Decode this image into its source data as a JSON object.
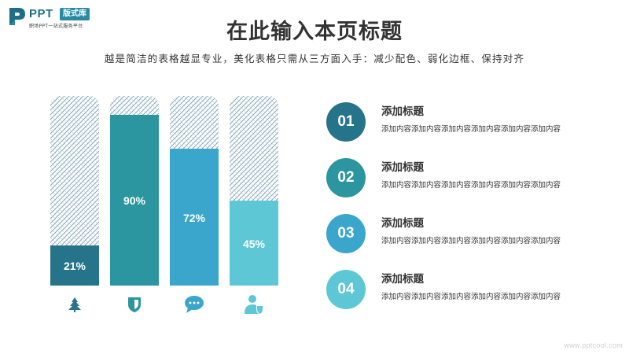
{
  "logo": {
    "brand": "PPT",
    "badge": "版式库",
    "tagline": "职场PPT一站式服务平台"
  },
  "title": "在此输入本页标题",
  "subtitle": "越是简洁的表格越显专业，美化表格只需从三方面入手：减少配色、弱化边框、保持对齐",
  "chart_data": {
    "type": "bar",
    "categories": [
      "tree-icon",
      "shield-icon",
      "chat-bubble-icon",
      "user-shield-icon"
    ],
    "values": [
      21,
      90,
      72,
      45
    ],
    "value_labels": [
      "21%",
      "90%",
      "72%",
      "45%"
    ],
    "ylim": [
      0,
      100
    ],
    "colors": [
      "#26748a",
      "#2b96a0",
      "#3aa6cc",
      "#5ec7d6"
    ],
    "grid": false,
    "legend": "none"
  },
  "items": [
    {
      "number": "01",
      "title": "添加标题",
      "desc": "添加内容添加内容添加内容添加内容添加内容添加内容",
      "color": "#26748a"
    },
    {
      "number": "02",
      "title": "添加标题",
      "desc": "添加内容添加内容添加内容添加内容添加内容添加内容",
      "color": "#2b96a0"
    },
    {
      "number": "03",
      "title": "添加标题",
      "desc": "添加内容添加内容添加内容添加内容添加内容添加内容",
      "color": "#3aa6cc"
    },
    {
      "number": "04",
      "title": "添加标题",
      "desc": "添加内容添加内容添加内容添加内容添加内容添加内容",
      "color": "#5ec7d6"
    }
  ],
  "footer": "www.pptcool.com"
}
